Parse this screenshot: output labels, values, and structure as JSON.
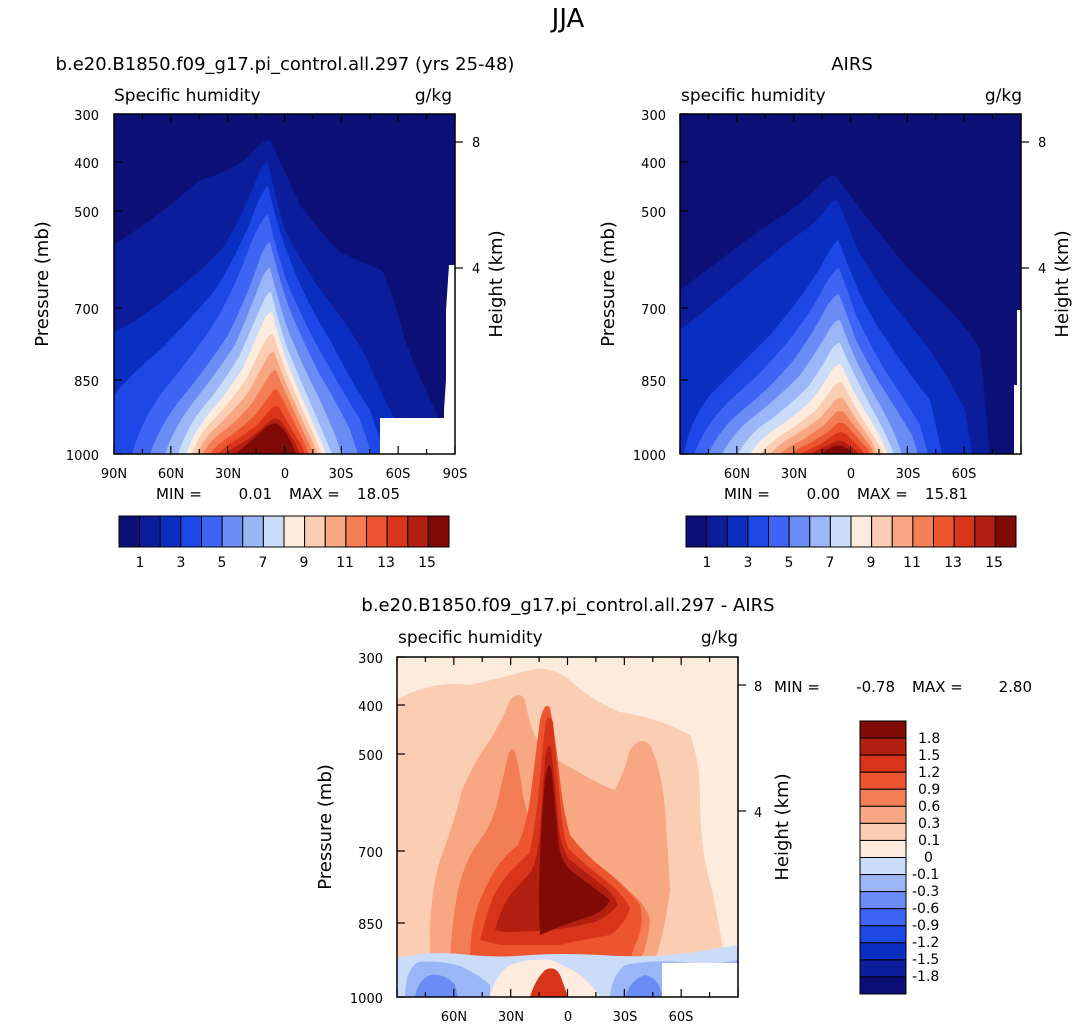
{
  "figure": {
    "title": "JJA"
  },
  "chart_data": [
    {
      "type": "heatmap",
      "id": "model",
      "title": "b.e20.B1850.f09_g17.pi_control.all.297 (yrs 25-48)",
      "left_label": "Specific humidity",
      "right_label": "g/kg",
      "ylabel": "Pressure (mb)",
      "ylabel_right": "Height (km)",
      "yticks": [
        "300",
        "400",
        "500",
        "700",
        "850",
        "1000"
      ],
      "yticks_right": [
        "8",
        "4"
      ],
      "xticks": [
        "90N",
        "60N",
        "30N",
        "0",
        "30S",
        "60S",
        "90S"
      ],
      "xlim": [
        90,
        -90
      ],
      "ylim_mb": [
        1000,
        300
      ],
      "stats": {
        "min_label": "MIN =",
        "min": "0.01",
        "max_label": "MAX =",
        "max": "18.05"
      },
      "colorbar": {
        "labels": [
          "1",
          "3",
          "5",
          "7",
          "9",
          "11",
          "13",
          "15"
        ],
        "levels": [
          1,
          2,
          3,
          4,
          5,
          6,
          7,
          8,
          9,
          10,
          11,
          12,
          13,
          14,
          15
        ],
        "colors": [
          "#0b0f76",
          "#0b1d9a",
          "#0a2fc0",
          "#1e48e6",
          "#3d64f2",
          "#6b8cf4",
          "#9bb6f7",
          "#cbdcf9",
          "#fdecdd",
          "#fbcdb2",
          "#f7a882",
          "#f37e55",
          "#ec5530",
          "#d8341a",
          "#b21e10",
          "#800a06"
        ]
      }
    },
    {
      "type": "heatmap",
      "id": "airs",
      "title": "AIRS",
      "left_label": "specific humidity",
      "right_label": "g/kg",
      "ylabel": "Pressure (mb)",
      "ylabel_right": "Height (km)",
      "yticks": [
        "300",
        "400",
        "500",
        "700",
        "850",
        "1000"
      ],
      "yticks_right": [
        "8",
        "4"
      ],
      "xticks": [
        "60N",
        "30N",
        "0",
        "30S",
        "60S"
      ],
      "xlim": [
        90,
        -90
      ],
      "ylim_mb": [
        1000,
        300
      ],
      "stats": {
        "min_label": "MIN =",
        "min": "0.00",
        "max_label": "MAX =",
        "max": "15.81"
      },
      "colorbar": {
        "labels": [
          "1",
          "3",
          "5",
          "7",
          "9",
          "11",
          "13",
          "15"
        ],
        "levels": [
          1,
          2,
          3,
          4,
          5,
          6,
          7,
          8,
          9,
          10,
          11,
          12,
          13,
          14,
          15
        ],
        "colors": [
          "#0b0f76",
          "#0b1d9a",
          "#0a2fc0",
          "#1e48e6",
          "#3d64f2",
          "#6b8cf4",
          "#9bb6f7",
          "#cbdcf9",
          "#fdecdd",
          "#fbcdb2",
          "#f7a882",
          "#f37e55",
          "#ec5530",
          "#d8341a",
          "#b21e10",
          "#800a06"
        ]
      }
    },
    {
      "type": "heatmap",
      "id": "diff",
      "title": "b.e20.B1850.f09_g17.pi_control.all.297 - AIRS",
      "left_label": "specific humidity",
      "right_label": "g/kg",
      "ylabel": "Pressure (mb)",
      "ylabel_right": "Height (km)",
      "yticks": [
        "300",
        "400",
        "500",
        "700",
        "850",
        "1000"
      ],
      "yticks_right": [
        "8",
        "4"
      ],
      "xticks": [
        "60N",
        "30N",
        "0",
        "30S",
        "60S"
      ],
      "xlim": [
        90,
        -90
      ],
      "ylim_mb": [
        1000,
        300
      ],
      "stats": {
        "min_label": "MIN =",
        "min": "-0.78",
        "max_label": "MAX =",
        "max": "2.80"
      },
      "colorbar": {
        "labels": [
          "1.8",
          "1.5",
          "1.2",
          "0.9",
          "0.6",
          "0.3",
          "0.1",
          "0",
          "-0.1",
          "-0.3",
          "-0.6",
          "-0.9",
          "-1.2",
          "-1.5",
          "-1.8"
        ],
        "colors": [
          "#800a06",
          "#b21e10",
          "#d8341a",
          "#ec5530",
          "#f37e55",
          "#f7a882",
          "#fbcdb2",
          "#fdecdd",
          "#cbdcf9",
          "#9bb6f7",
          "#6b8cf4",
          "#3d64f2",
          "#1e48e6",
          "#0a2fc0",
          "#0b1d9a",
          "#0b0f76"
        ]
      }
    }
  ]
}
